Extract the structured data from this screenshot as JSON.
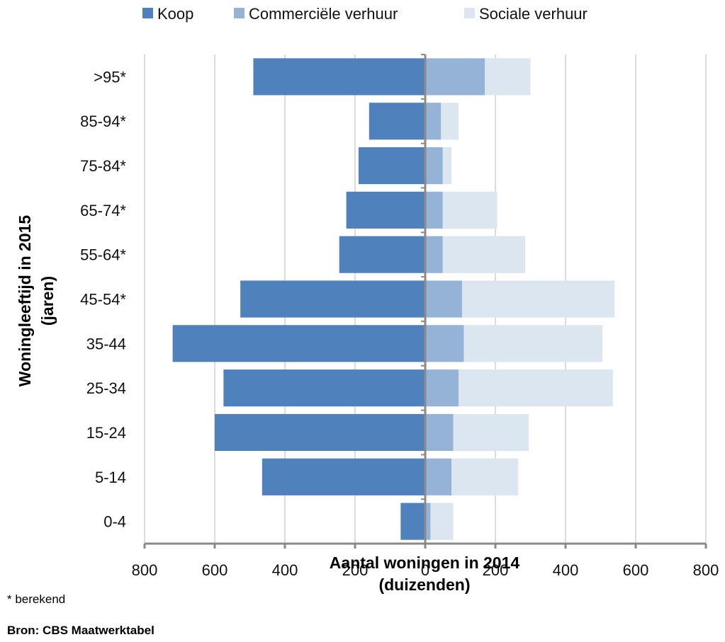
{
  "chart_data": {
    "type": "bar",
    "orientation": "horizontal",
    "layout": "diverging",
    "categories": [
      "0-4",
      "5-14",
      "15-24",
      "25-34",
      "35-44",
      "45-54*",
      "55-64*",
      "65-74*",
      "75-84*",
      "85-94*",
      ">95*"
    ],
    "series": [
      {
        "name": "Koop",
        "side": "left",
        "color": "#4f81bd",
        "values": [
          70,
          465,
          600,
          575,
          720,
          527,
          245,
          225,
          190,
          160,
          490
        ]
      },
      {
        "name": "Commerciële verhuur",
        "side": "right",
        "color": "#95b3d7",
        "values": [
          15,
          75,
          80,
          95,
          110,
          105,
          50,
          50,
          50,
          45,
          170
        ]
      },
      {
        "name": "Sociale verhuur",
        "side": "right",
        "color": "#dce6f1",
        "values": [
          65,
          190,
          215,
          440,
          395,
          435,
          235,
          155,
          25,
          50,
          130
        ]
      }
    ],
    "xlim": [
      -800,
      800
    ],
    "x_ticks": [
      -800,
      -600,
      -400,
      -200,
      0,
      200,
      400,
      600,
      800
    ],
    "x_tick_labels": [
      "800",
      "600",
      "400",
      "200",
      "0",
      "200",
      "400",
      "600",
      "800"
    ],
    "xlabel": "Aantal woningen in 2014",
    "xlabel_unit": "(duizenden)",
    "ylabel": "Woningleeftijd in 2015",
    "ylabel_unit": "(jaren)",
    "legend_position": "top",
    "grid": "vertical",
    "footnote": "* berekend",
    "source": "Bron: CBS Maatwerktabel"
  }
}
